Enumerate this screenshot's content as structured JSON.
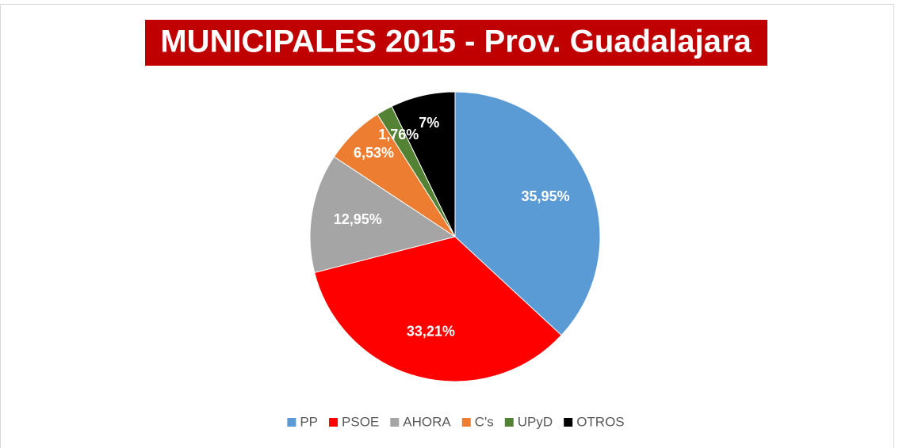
{
  "chart_data": {
    "type": "pie",
    "title": "MUNICIPALES 2015 - Prov. Guadalajara",
    "title_background": "#c00000",
    "categories": [
      "PP",
      "PSOE",
      "AHORA",
      "C's",
      "UPyD",
      "OTROS"
    ],
    "values": [
      35.95,
      33.21,
      12.95,
      6.53,
      1.76,
      7
    ],
    "value_labels": [
      "35,95%",
      "33,21%",
      "12,95%",
      "6,53%",
      "1,76%",
      "7%"
    ],
    "colors": [
      "#5b9bd5",
      "#ff0000",
      "#a5a5a5",
      "#ed7d31",
      "#548235",
      "#000000"
    ],
    "legend": "bottom"
  }
}
